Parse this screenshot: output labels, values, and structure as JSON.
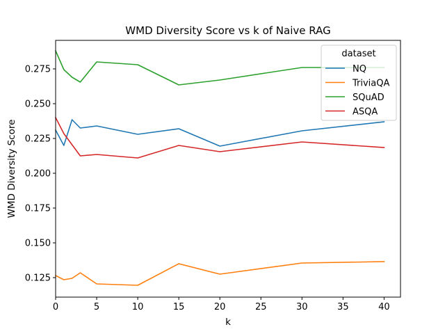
{
  "chart_data": {
    "type": "line",
    "title": "WMD Diversity Score vs k of Naive RAG",
    "xlabel": "k",
    "ylabel": "WMD Diversity Score",
    "xlim": [
      0,
      42
    ],
    "ylim": [
      0.111,
      0.2955
    ],
    "xticks": [
      0,
      5,
      10,
      15,
      20,
      25,
      30,
      35,
      40
    ],
    "yticks": [
      0.125,
      0.15,
      0.175,
      0.2,
      0.225,
      0.25,
      0.275
    ],
    "ytick_labels": [
      "0.125",
      "0.150",
      "0.175",
      "0.200",
      "0.225",
      "0.250",
      "0.275"
    ],
    "grid": false,
    "legend": {
      "title": "dataset",
      "placement": "top-right"
    },
    "x": [
      0,
      1,
      2,
      3,
      5,
      10,
      15,
      20,
      30,
      40
    ],
    "series": [
      {
        "name": "NQ",
        "color": "#1f77b4",
        "values": [
          0.231,
          0.22,
          0.2385,
          0.2325,
          0.234,
          0.228,
          0.232,
          0.2195,
          0.2305,
          0.237
        ]
      },
      {
        "name": "TriviaQA",
        "color": "#ff7f0e",
        "values": [
          0.1265,
          0.1235,
          0.1245,
          0.1285,
          0.1205,
          0.1195,
          0.135,
          0.1275,
          0.1355,
          0.1365
        ]
      },
      {
        "name": "SQuAD",
        "color": "#2ca02c",
        "values": [
          0.288,
          0.2745,
          0.269,
          0.2655,
          0.28,
          0.278,
          0.2635,
          0.267,
          0.276,
          0.276
        ]
      },
      {
        "name": "ASQA",
        "color": "#d62728",
        "values": [
          0.24,
          0.2285,
          0.2205,
          0.2125,
          0.2135,
          0.211,
          0.22,
          0.2155,
          0.2225,
          0.2185
        ]
      }
    ]
  }
}
